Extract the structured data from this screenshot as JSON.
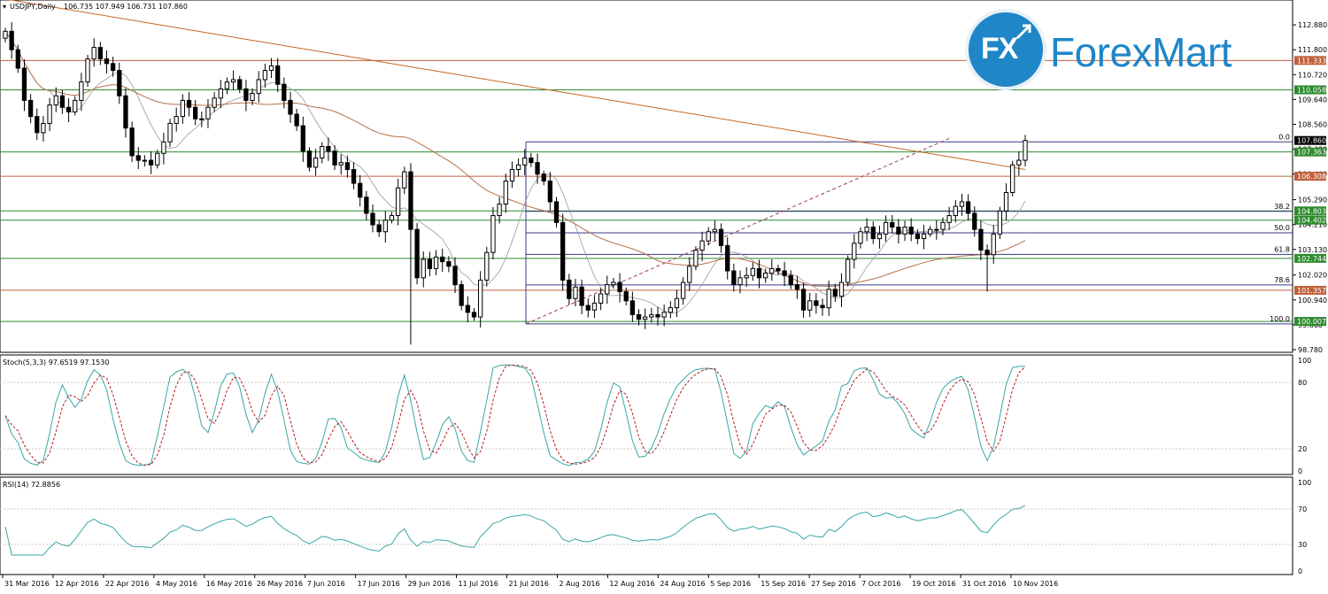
{
  "header": {
    "symbol_label": "USDJPY,Daily",
    "ohlc": "106.735 107.949 106.731 107.860"
  },
  "logo": {
    "fx": "FX",
    "name": "ForexMart",
    "color": "#1f86c8"
  },
  "chart_data": {
    "type": "candlestick",
    "price_axis": {
      "ylim": [
        98.78,
        113.42
      ],
      "ticks": [
        "112.880",
        "111.800",
        "110.720",
        "109.640",
        "108.560",
        "107.480",
        "106.400",
        "105.290",
        "104.210",
        "103.130",
        "102.020",
        "100.940",
        "99.860",
        "98.780"
      ]
    },
    "time_axis": {
      "labels": [
        "31 Mar 2016",
        "12 Apr 2016",
        "22 Apr 2016",
        "4 May 2016",
        "16 May 2016",
        "26 May 2016",
        "7 Jun 2016",
        "17 Jun 2016",
        "29 Jun 2016",
        "11 Jul 2016",
        "21 Jul 2016",
        "2 Aug 2016",
        "12 Aug 2016",
        "24 Aug 2016",
        "5 Sep 2016",
        "15 Sep 2016",
        "27 Sep 2016",
        "7 Oct 2016",
        "19 Oct 2016",
        "31 Oct 2016",
        "10 Nov 2016"
      ]
    },
    "price_labels": [
      {
        "value": 111.333,
        "text": "111.333",
        "color": "#c0603a"
      },
      {
        "value": 110.058,
        "text": "110.058",
        "color": "#2e8b2e"
      },
      {
        "value": 107.86,
        "text": "107.860",
        "color": "#000000"
      },
      {
        "value": 107.363,
        "text": "107.363",
        "color": "#2e8b2e"
      },
      {
        "value": 106.308,
        "text": "106.308",
        "color": "#c0603a"
      },
      {
        "value": 104.803,
        "text": "104.803",
        "color": "#2e8b2e"
      },
      {
        "value": 104.402,
        "text": "104.402",
        "color": "#2e8b2e"
      },
      {
        "value": 102.744,
        "text": "102.744",
        "color": "#2e8b2e"
      },
      {
        "value": 101.357,
        "text": "101.357",
        "color": "#c0603a"
      },
      {
        "value": 100.007,
        "text": "100.007",
        "color": "#2e8b2e"
      }
    ],
    "horizontal_levels": [
      {
        "value": 111.333,
        "color": "#c0603a"
      },
      {
        "value": 110.058,
        "color": "#2e8b2e"
      },
      {
        "value": 107.363,
        "color": "#2e8b2e"
      },
      {
        "value": 106.308,
        "color": "#c0603a"
      },
      {
        "value": 104.803,
        "color": "#2e8b2e"
      },
      {
        "value": 104.402,
        "color": "#2e8b2e"
      },
      {
        "value": 102.744,
        "color": "#2e8b2e"
      },
      {
        "value": 101.357,
        "color": "#c0603a"
      },
      {
        "value": 100.007,
        "color": "#2e8b2e"
      }
    ],
    "fibonacci": {
      "high": 107.8,
      "low": 99.9,
      "levels": [
        {
          "ratio": 0.0,
          "text": "0.0"
        },
        {
          "ratio": 0.382,
          "text": "38.2"
        },
        {
          "ratio": 0.5,
          "text": "50.0"
        },
        {
          "ratio": 0.618,
          "text": "61.8"
        },
        {
          "ratio": 0.786,
          "text": "78.6"
        },
        {
          "ratio": 1.0,
          "text": "100.0"
        }
      ],
      "color": "#3a3a8c"
    },
    "close_series": [
      112.6,
      111.8,
      111.0,
      109.6,
      108.9,
      108.2,
      108.6,
      109.4,
      109.8,
      109.3,
      109.1,
      109.6,
      110.4,
      111.4,
      111.9,
      111.4,
      111.2,
      110.9,
      109.8,
      108.4,
      107.2,
      107.0,
      107.0,
      106.8,
      107.3,
      107.8,
      108.6,
      108.9,
      109.6,
      109.3,
      108.8,
      108.8,
      109.3,
      109.7,
      110.1,
      110.4,
      110.5,
      110.1,
      109.6,
      109.9,
      110.5,
      110.9,
      111.1,
      110.3,
      109.6,
      109.0,
      108.5,
      107.4,
      106.7,
      107.1,
      107.6,
      107.4,
      106.8,
      106.9,
      106.6,
      106.0,
      105.4,
      104.7,
      104.2,
      103.9,
      104.4,
      104.6,
      105.8,
      106.5,
      104.0,
      101.9,
      102.7,
      102.3,
      102.8,
      102.6,
      102.4,
      101.6,
      100.7,
      100.4,
      100.2,
      101.8,
      103.0,
      104.6,
      105.1,
      106.1,
      106.6,
      106.8,
      107.1,
      106.9,
      106.4,
      106.1,
      105.2,
      104.3,
      101.8,
      101.0,
      101.5,
      100.7,
      100.5,
      100.8,
      101.2,
      101.6,
      101.7,
      101.3,
      100.9,
      100.3,
      100.1,
      100.2,
      100.3,
      100.2,
      100.4,
      100.6,
      101.0,
      101.7,
      102.4,
      103.1,
      103.5,
      103.9,
      104.0,
      103.3,
      102.2,
      101.6,
      101.9,
      102.0,
      102.3,
      101.9,
      102.1,
      102.3,
      102.2,
      102.0,
      101.6,
      101.4,
      100.5,
      100.9,
      100.7,
      100.6,
      101.4,
      101.1,
      101.7,
      102.7,
      103.4,
      103.9,
      104.1,
      103.6,
      103.8,
      104.3,
      104.1,
      103.8,
      104.1,
      103.8,
      103.6,
      103.8,
      104.0,
      104.0,
      104.3,
      104.6,
      105.0,
      105.2,
      104.7,
      104.0,
      103.1,
      102.9,
      103.8,
      104.8,
      105.6,
      106.8,
      107.0,
      107.86
    ],
    "ma_fast": {
      "color": "#9a9a9a"
    },
    "ma_mid": {
      "color": "#b5704a"
    },
    "ma_slow": {
      "color": "#c46a2e"
    },
    "trendline": {
      "color": "#9c3a5a",
      "style": "dashed"
    },
    "stochastic": {
      "label": "Stoch(5,3,3) 97.6519 97.1530",
      "ylim": [
        0,
        100
      ],
      "ticks": [
        "100",
        "80",
        "20",
        "0"
      ],
      "main_color": "#3aa6a6",
      "signal_color": "#b02020"
    },
    "rsi": {
      "label": "RSI(14) 72.8856",
      "ylim": [
        0,
        100
      ],
      "ticks": [
        "100",
        "70",
        "30",
        "0"
      ],
      "color": "#3aa6a6"
    }
  }
}
